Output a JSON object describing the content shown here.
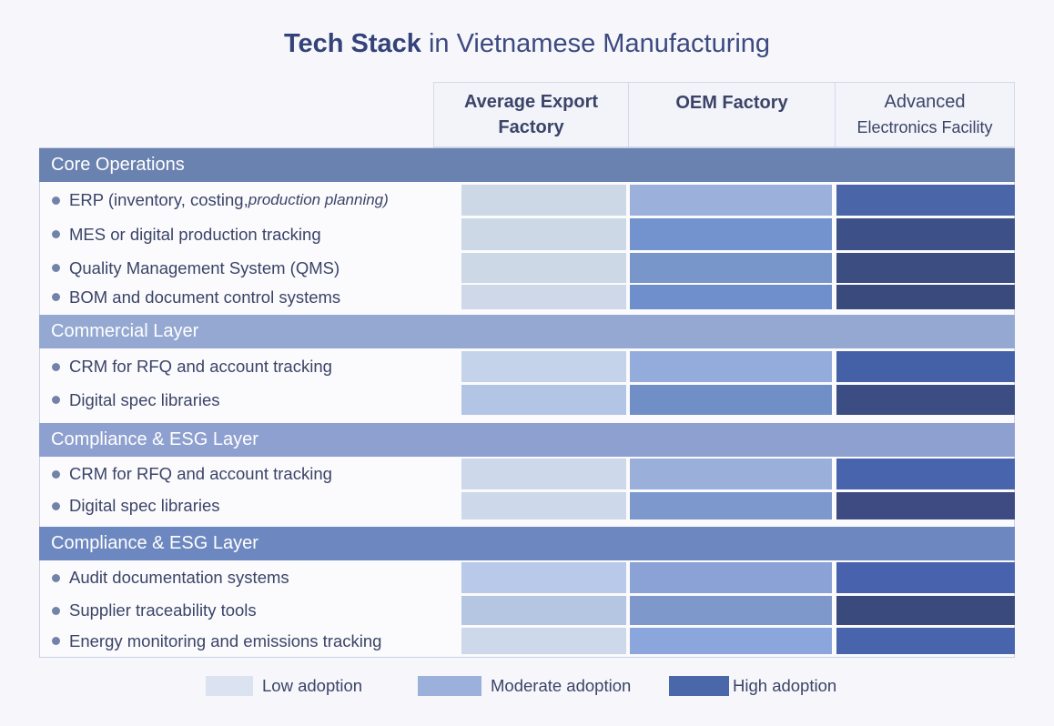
{
  "chart_data": {
    "type": "heatmap",
    "title_bold": "Tech Stack",
    "title_rest": " in Vietnamese Manufacturing",
    "columns": [
      {
        "line1": "Average Export",
        "line2": "Factory"
      },
      {
        "line1": "OEM Factory",
        "line2": ""
      },
      {
        "line1": "Advanced",
        "line2": "Electronics Facility"
      }
    ],
    "sections": [
      {
        "name": "Core Operations",
        "color": "#6a82b0",
        "rows": [
          {
            "label": "ERP (inventory, costing, ",
            "label_italic": "production planning)",
            "levels": [
              "low",
              "moderate",
              "high"
            ],
            "colors": [
              "#cdd8e7",
              "#9bb0da",
              "#4a65a8"
            ]
          },
          {
            "label": "MES or digital production tracking",
            "levels": [
              "low",
              "moderate",
              "high"
            ],
            "colors": [
              "#cdd8e7",
              "#7393cf",
              "#3d5088"
            ]
          },
          {
            "label": "Quality Management System (QMS)",
            "levels": [
              "low",
              "moderate",
              "high"
            ],
            "colors": [
              "#cdd8e7",
              "#7896c9",
              "#3c4d82"
            ]
          },
          {
            "label": "BOM and document control systems",
            "levels": [
              "low",
              "moderate",
              "high"
            ],
            "colors": [
              "#cfd8e8",
              "#6f8fcc",
              "#3b4a7c"
            ]
          }
        ]
      },
      {
        "name": "Commercial Layer",
        "color": "#94a8d2",
        "rows": [
          {
            "label": "CRM for RFQ and account tracking",
            "levels": [
              "low",
              "moderate",
              "high"
            ],
            "colors": [
              "#c5d3ea",
              "#93acdc",
              "#4461a8"
            ]
          },
          {
            "label": "Digital spec libraries",
            "levels": [
              "low",
              "moderate",
              "high"
            ],
            "colors": [
              "#b3c5e4",
              "#6f8fc6",
              "#3c4d84"
            ]
          }
        ]
      },
      {
        "name": "Compliance & ESG Layer",
        "color": "#8ea0cf",
        "rows": [
          {
            "label": "CRM for RFQ and account tracking",
            "levels": [
              "low",
              "moderate",
              "high"
            ],
            "colors": [
              "#cdd8ea",
              "#9ab0da",
              "#4864ad"
            ]
          },
          {
            "label": "Digital spec libraries",
            "levels": [
              "low",
              "moderate",
              "high"
            ],
            "colors": [
              "#cdd8ea",
              "#7c98cc",
              "#3d4b82"
            ]
          }
        ]
      },
      {
        "name": "Compliance & ESG Layer",
        "color": "#6d88c0",
        "rows": [
          {
            "label": "Audit documentation systems",
            "levels": [
              "low",
              "moderate",
              "high"
            ],
            "colors": [
              "#b8c9e9",
              "#8aa2d6",
              "#4862ad"
            ]
          },
          {
            "label": "Supplier traceability tools",
            "levels": [
              "low",
              "moderate",
              "high"
            ],
            "colors": [
              "#b5c6e3",
              "#7f98cc",
              "#3b4a7c"
            ]
          },
          {
            "label": "Energy monitoring and emissions tracking",
            "levels": [
              "low",
              "moderate",
              "high"
            ],
            "colors": [
              "#cdd8ea",
              "#8ba6dd",
              "#4864ad"
            ]
          }
        ]
      }
    ],
    "legend": [
      {
        "level": "low",
        "text": "Low adoption",
        "color": "#dbe3f1"
      },
      {
        "level": "moderate",
        "text": "Moderate adoption",
        "color": "#9bb0da"
      },
      {
        "level": "high",
        "text": "High adoption",
        "color": "#4a67aa"
      }
    ]
  }
}
